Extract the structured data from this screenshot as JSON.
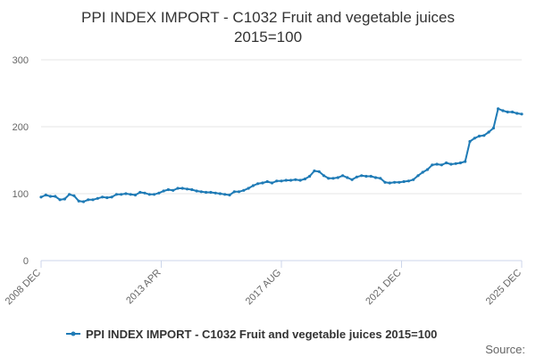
{
  "chart_data": {
    "type": "line",
    "title_lines": [
      "PPI INDEX IMPORT - C1032 Fruit and vegetable juices",
      "2015=100"
    ],
    "xlabel": "",
    "ylabel": "",
    "x_tick_labels": [
      "2008 DEC",
      "2013 APR",
      "2017 AUG",
      "2021 DEC",
      "2025 DEC"
    ],
    "x_range": [
      "2008-12",
      "2025-12"
    ],
    "y_ticks": [
      0,
      100,
      200,
      300
    ],
    "ylim": [
      0,
      300
    ],
    "grid": "horizontal",
    "legend_position": "bottom",
    "credit": "Source:",
    "colors": {
      "series": "#1f7bb6",
      "grid": "#e6e6e6",
      "axis": "#ccd6eb"
    },
    "series": [
      {
        "name": "PPI INDEX IMPORT - C1032 Fruit and vegetable juices 2015=100",
        "x": [
          "2008-12",
          "2009-02",
          "2009-04",
          "2009-06",
          "2009-08",
          "2009-10",
          "2009-12",
          "2010-02",
          "2010-04",
          "2010-06",
          "2010-08",
          "2010-10",
          "2010-12",
          "2011-02",
          "2011-04",
          "2011-06",
          "2011-08",
          "2011-10",
          "2011-12",
          "2012-02",
          "2012-04",
          "2012-06",
          "2012-08",
          "2012-10",
          "2012-12",
          "2013-02",
          "2013-04",
          "2013-06",
          "2013-08",
          "2013-10",
          "2013-12",
          "2014-02",
          "2014-04",
          "2014-06",
          "2014-08",
          "2014-10",
          "2014-12",
          "2015-02",
          "2015-04",
          "2015-06",
          "2015-08",
          "2015-10",
          "2015-12",
          "2016-02",
          "2016-04",
          "2016-06",
          "2016-08",
          "2016-10",
          "2016-12",
          "2017-02",
          "2017-04",
          "2017-06",
          "2017-08",
          "2017-10",
          "2017-12",
          "2018-02",
          "2018-04",
          "2018-06",
          "2018-08",
          "2018-10",
          "2018-12",
          "2019-02",
          "2019-04",
          "2019-06",
          "2019-08",
          "2019-10",
          "2019-12",
          "2020-02",
          "2020-04",
          "2020-06",
          "2020-08",
          "2020-10",
          "2020-12",
          "2021-02",
          "2021-04",
          "2021-06",
          "2021-08",
          "2021-10",
          "2021-12",
          "2022-02",
          "2022-04",
          "2022-06",
          "2022-08",
          "2022-10",
          "2022-12",
          "2023-02",
          "2023-04",
          "2023-06",
          "2023-08",
          "2023-10",
          "2023-12",
          "2024-02",
          "2024-04",
          "2024-06",
          "2024-08",
          "2024-10",
          "2024-12",
          "2025-02",
          "2025-04",
          "2025-06",
          "2025-08",
          "2025-10",
          "2025-12"
        ],
        "values": [
          95,
          98,
          96,
          96,
          91,
          92,
          99,
          97,
          89,
          88,
          91,
          91,
          93,
          95,
          94,
          95,
          99,
          99,
          100,
          99,
          98,
          102,
          101,
          99,
          99,
          101,
          104,
          106,
          105,
          108,
          108,
          107,
          106,
          104,
          103,
          102,
          102,
          101,
          100,
          99,
          98,
          103,
          103,
          105,
          108,
          112,
          115,
          116,
          118,
          116,
          119,
          119,
          120,
          120,
          121,
          120,
          122,
          126,
          134,
          133,
          127,
          123,
          123,
          124,
          127,
          124,
          121,
          125,
          127,
          126,
          126,
          124,
          123,
          117,
          116,
          117,
          117,
          118,
          119,
          121,
          127,
          132,
          136,
          143,
          144,
          143,
          146,
          144,
          145,
          146,
          148,
          178,
          183,
          186,
          187,
          192,
          198,
          227,
          224,
          222,
          222,
          220,
          219
        ]
      }
    ]
  }
}
